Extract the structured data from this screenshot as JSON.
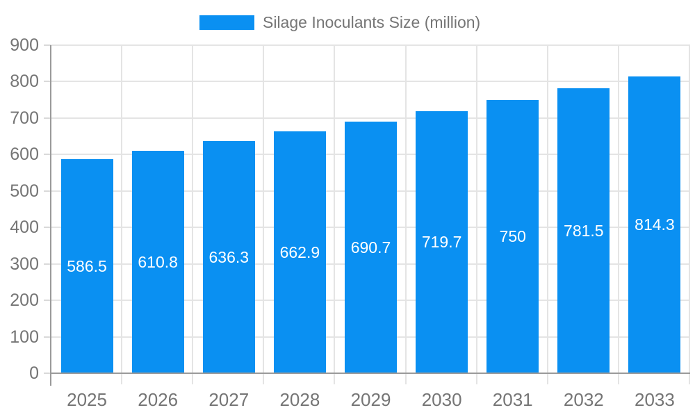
{
  "chart_data": {
    "type": "bar",
    "title": "Silage Inoculants Size (million)",
    "categories": [
      "2025",
      "2026",
      "2027",
      "2028",
      "2029",
      "2030",
      "2031",
      "2032",
      "2033"
    ],
    "values": [
      586.5,
      610.8,
      636.3,
      662.9,
      690.7,
      719.7,
      750,
      781.5,
      814.3
    ],
    "value_labels": [
      "586.5",
      "610.8",
      "636.3",
      "662.9",
      "690.7",
      "719.7",
      "750",
      "781.5",
      "814.3"
    ],
    "xlabel": "",
    "ylabel": "",
    "ylim": [
      0,
      900
    ],
    "y_ticks": [
      0,
      100,
      200,
      300,
      400,
      500,
      600,
      700,
      800,
      900
    ],
    "y_tick_labels": [
      "0",
      "100",
      "200",
      "300",
      "400",
      "500",
      "600",
      "700",
      "800",
      "900"
    ],
    "grid": true,
    "legend_position": "top",
    "colors": {
      "bar": "#0a90f2",
      "axis": "#9a9a9a",
      "gridline": "#e4e4e4",
      "tick_mark": "#d9d9d9",
      "tick_text": "#757575",
      "bar_label_text": "#ffffff",
      "legend_text": "#757575",
      "background": "#ffffff"
    }
  }
}
